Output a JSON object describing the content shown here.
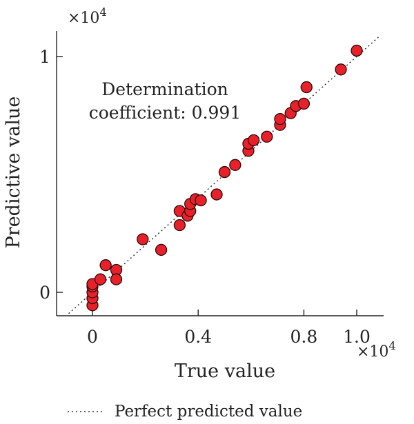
{
  "chart_data": {
    "type": "scatter",
    "xlabel": "True value",
    "ylabel": "Predictive value",
    "x_multiplier": "×10",
    "x_multiplier_exp": "4",
    "y_multiplier": "×10",
    "y_multiplier_exp": "4",
    "xlim": [
      -0.1,
      1.1
    ],
    "ylim": [
      -0.1,
      1.1
    ],
    "x_ticks": [
      {
        "value": 0,
        "label": "0"
      },
      {
        "value": 0.4,
        "label": "0.4"
      },
      {
        "value": 0.8,
        "label": "0.8"
      },
      {
        "value": 1.0,
        "label": "1.0"
      }
    ],
    "y_ticks": [
      {
        "value": 0,
        "label": "0"
      },
      {
        "value": 1,
        "label": "1"
      }
    ],
    "annotation_line1": "Determination",
    "annotation_line2": "coefficient: 0.991",
    "legend_label": "Perfect predicted value",
    "legend_position": "bottom",
    "marker_color": "#e8202a",
    "points": [
      [
        0.0,
        -0.055
      ],
      [
        0.0,
        -0.025
      ],
      [
        0.0,
        0.0
      ],
      [
        0.0,
        0.025
      ],
      [
        0.0,
        0.035
      ],
      [
        0.03,
        0.055
      ],
      [
        0.05,
        0.115
      ],
      [
        0.09,
        0.095
      ],
      [
        0.09,
        0.055
      ],
      [
        0.19,
        0.225
      ],
      [
        0.26,
        0.18
      ],
      [
        0.33,
        0.285
      ],
      [
        0.33,
        0.345
      ],
      [
        0.36,
        0.325
      ],
      [
        0.37,
        0.345
      ],
      [
        0.37,
        0.375
      ],
      [
        0.39,
        0.395
      ],
      [
        0.41,
        0.39
      ],
      [
        0.47,
        0.415
      ],
      [
        0.5,
        0.51
      ],
      [
        0.54,
        0.54
      ],
      [
        0.59,
        0.6
      ],
      [
        0.59,
        0.63
      ],
      [
        0.61,
        0.645
      ],
      [
        0.66,
        0.66
      ],
      [
        0.71,
        0.71
      ],
      [
        0.71,
        0.735
      ],
      [
        0.75,
        0.76
      ],
      [
        0.77,
        0.79
      ],
      [
        0.8,
        0.8
      ],
      [
        0.81,
        0.87
      ],
      [
        0.94,
        0.945
      ],
      [
        1.0,
        1.025
      ]
    ]
  }
}
